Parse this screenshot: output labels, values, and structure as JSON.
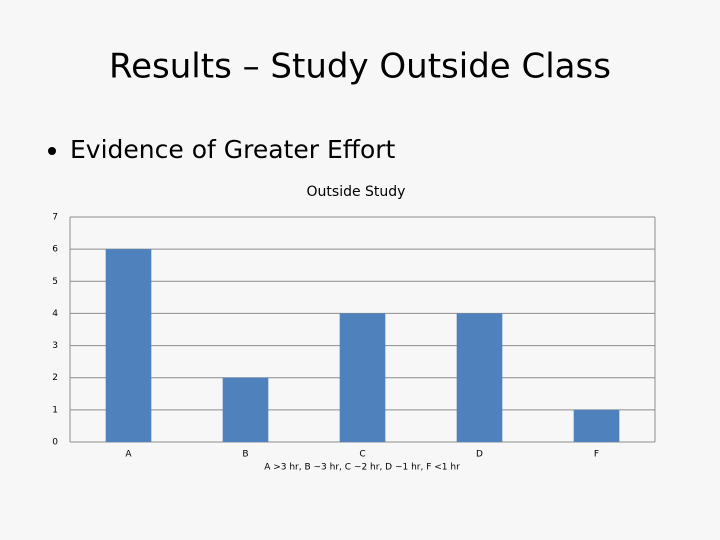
{
  "slide_title": "Results – Study Outside Class",
  "bullet": "Evidence of Greater Effort",
  "chart_data": {
    "type": "bar",
    "title": "Outside Study",
    "categories": [
      "A",
      "B",
      "C",
      "D",
      "F"
    ],
    "values": [
      6,
      2,
      4,
      4,
      1
    ],
    "color": "#4f81bd",
    "x_label": "A >3 hr, B ~3 hr, C ~2 hr, D ~1 hr, F <1 hr",
    "ylim": [
      0,
      7
    ],
    "yticks": [
      0,
      1,
      2,
      3,
      4,
      5,
      6,
      7
    ],
    "grid": true
  }
}
